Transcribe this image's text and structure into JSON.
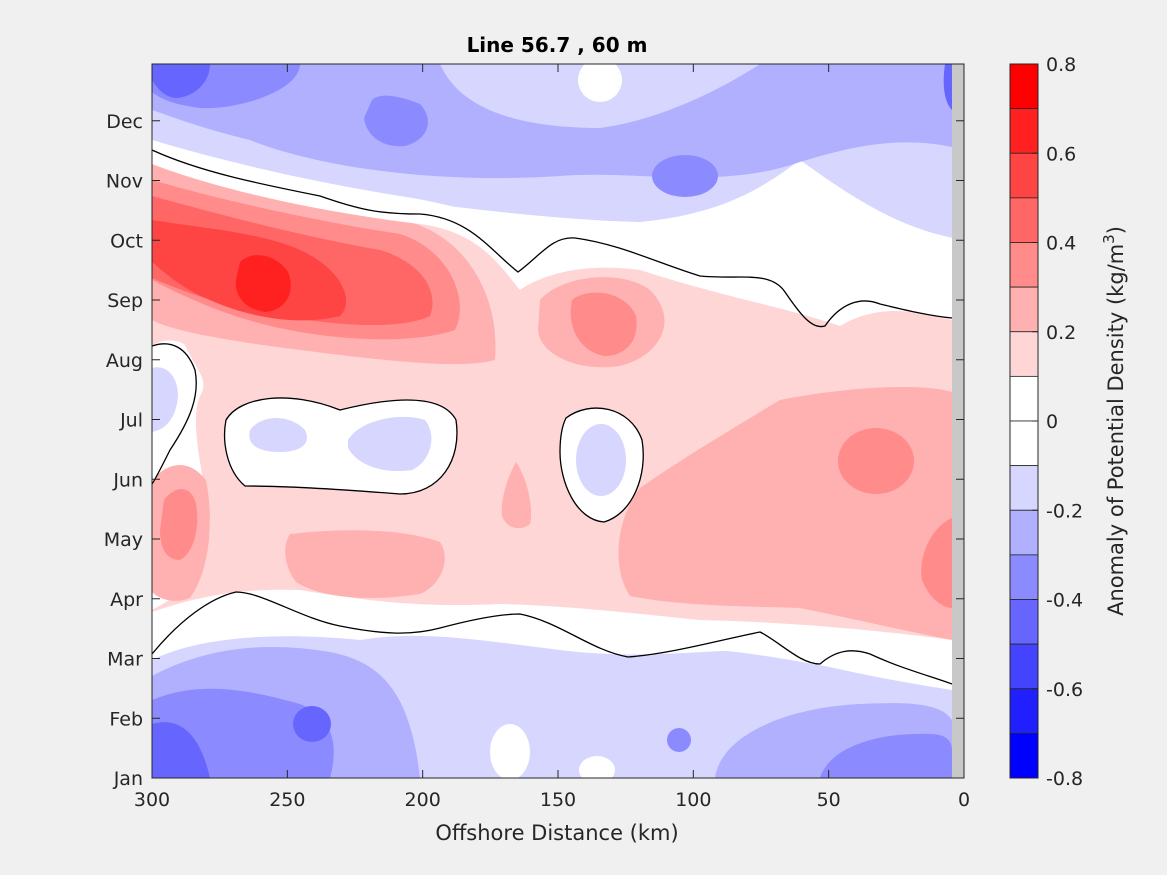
{
  "chart_data": {
    "type": "heatmap",
    "subtype": "filled-contour",
    "title": "Line 56.7 , 60 m",
    "xlabel": "Offshore Distance (km)",
    "ylabel": "",
    "x_direction": "reversed",
    "xlim": [
      300,
      0
    ],
    "x_ticks": [
      300,
      250,
      200,
      150,
      100,
      50,
      0
    ],
    "x_tick_labels": [
      "300",
      "250",
      "200",
      "150",
      "100",
      "50",
      "0"
    ],
    "y_ticks": [
      1,
      2,
      3,
      4,
      5,
      6,
      7,
      8,
      9,
      10,
      11,
      12
    ],
    "y_tick_labels": [
      "Jan",
      "Feb",
      "Mar",
      "Apr",
      "May",
      "Jun",
      "Jul",
      "Aug",
      "Sep",
      "Oct",
      "Nov",
      "Dec"
    ],
    "ylim": [
      1,
      12.95
    ],
    "no_data_band_x": [
      5,
      0
    ],
    "contour_line_levels": [
      0
    ],
    "grid": false,
    "colorbar": {
      "label": "Anomaly of Potential Density (kg/m",
      "label_superscript": "3",
      "label_close": ")",
      "range": [
        -0.8,
        0.8
      ],
      "tick_values": [
        0.8,
        0.6,
        0.4,
        0.2,
        0,
        -0.2,
        -0.4,
        -0.6,
        -0.8
      ],
      "tick_labels": [
        "0.8",
        "0.6",
        "0.4",
        "0.2",
        "0",
        "-0.2",
        "-0.4",
        "-0.6",
        "-0.8"
      ],
      "levels": [
        {
          "range": [
            0.7,
            0.8
          ],
          "color": "#ff0000"
        },
        {
          "range": [
            0.6,
            0.7
          ],
          "color": "#ff2020"
        },
        {
          "range": [
            0.5,
            0.6
          ],
          "color": "#ff4444"
        },
        {
          "range": [
            0.4,
            0.5
          ],
          "color": "#ff6666"
        },
        {
          "range": [
            0.3,
            0.4
          ],
          "color": "#ff8b8b"
        },
        {
          "range": [
            0.2,
            0.3
          ],
          "color": "#ffb0b0"
        },
        {
          "range": [
            0.1,
            0.2
          ],
          "color": "#ffd6d6"
        },
        {
          "range": [
            0.0,
            0.1
          ],
          "color": "#ffffff"
        },
        {
          "range": [
            -0.1,
            0.0
          ],
          "color": "#ffffff"
        },
        {
          "range": [
            -0.2,
            -0.1
          ],
          "color": "#d6d6ff"
        },
        {
          "range": [
            -0.3,
            -0.2
          ],
          "color": "#b0b0ff"
        },
        {
          "range": [
            -0.4,
            -0.3
          ],
          "color": "#8b8bff"
        },
        {
          "range": [
            -0.5,
            -0.4
          ],
          "color": "#6666ff"
        },
        {
          "range": [
            -0.6,
            -0.5
          ],
          "color": "#4444ff"
        },
        {
          "range": [
            -0.7,
            -0.6
          ],
          "color": "#2020ff"
        },
        {
          "range": [
            -0.8,
            -0.7
          ],
          "color": "#0000ff"
        }
      ]
    },
    "field_features": [
      {
        "region": "Jan-Feb, 300-240 km",
        "value": -0.5
      },
      {
        "region": "Jan-Feb, 50-5 km",
        "value": -0.3
      },
      {
        "region": "Feb, 240-230 km",
        "value": -0.35
      },
      {
        "region": "Nov, 110-90 km",
        "value": -0.3
      },
      {
        "region": "Dec, 300-250 km",
        "value": -0.45
      },
      {
        "region": "Dec, 220-200 km",
        "value": -0.3
      },
      {
        "region": "Dec-Nov, 8-5 km",
        "value": -0.4
      },
      {
        "region": "Sep, 270-250 km",
        "value": 0.65
      },
      {
        "region": "Oct, 300-210 km",
        "value": 0.5
      },
      {
        "region": "Sep, 140-120 km",
        "value": 0.35
      },
      {
        "region": "Jun-Jul, 50-20 km",
        "value": 0.35
      },
      {
        "region": "May, 300-285 km",
        "value": 0.3
      },
      {
        "region": "Apr-May, 10-0 km",
        "value": 0.35
      },
      {
        "region": "Jul, 250-185 km",
        "value": -0.15
      },
      {
        "region": "Jun-Jul, 140-120 km",
        "value": -0.15
      }
    ]
  },
  "colors": {
    "figure_background": "#f0f0f0",
    "contour_line": "#000000",
    "no_data_band": "#c8c8c8"
  }
}
